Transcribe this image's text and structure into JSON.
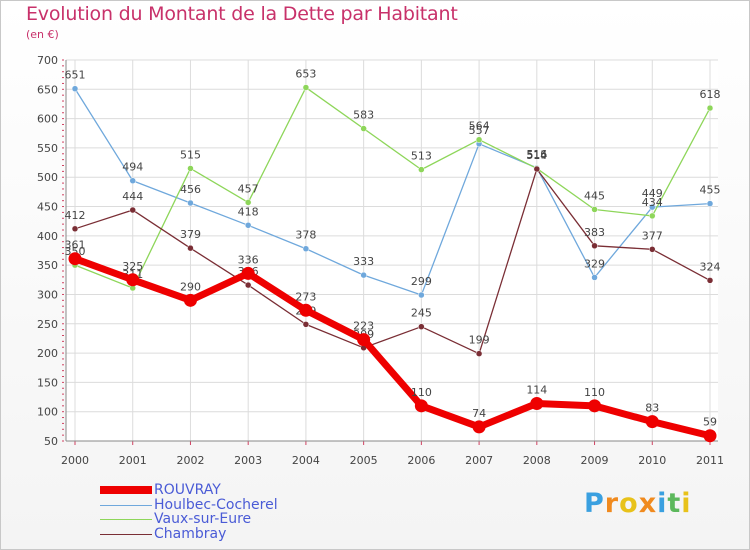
{
  "title": "Evolution du Montant de la Dette par Habitant",
  "subtitle": "(en €)",
  "logo": {
    "text": "Proxiti",
    "letters": [
      "P",
      "r",
      "o",
      "x",
      "i",
      "t",
      "i"
    ],
    "colors": [
      "#3aa0e0",
      "#f08a1e",
      "#e8c21a",
      "#f08a1e",
      "#3aa0e0",
      "#5cb85c",
      "#e8c21a"
    ]
  },
  "chart_data": {
    "type": "line",
    "x": [
      "2000",
      "2001",
      "2002",
      "2003",
      "2004",
      "2005",
      "2006",
      "2007",
      "2008",
      "2009",
      "2010",
      "2011"
    ],
    "ylim": [
      50,
      700
    ],
    "yticks": [
      50,
      100,
      150,
      200,
      250,
      300,
      350,
      400,
      450,
      500,
      550,
      600,
      650,
      700
    ],
    "grid": true,
    "legend_position": "bottom-left",
    "series": [
      {
        "name": "Houlbec-Cocherel",
        "color": "#6fa8dc",
        "values": [
          651,
          494,
          456,
          418,
          378,
          333,
          299,
          557,
          516,
          329,
          449,
          455
        ]
      },
      {
        "name": "Vaux-sur-Eure",
        "color": "#8ed65a",
        "values": [
          350,
          311,
          515,
          457,
          653,
          583,
          513,
          564,
          515,
          445,
          434,
          618
        ]
      },
      {
        "name": "Chambray",
        "color": "#7a2e35",
        "values": [
          412,
          444,
          379,
          316,
          249,
          209,
          245,
          199,
          514,
          383,
          377,
          324
        ]
      },
      {
        "name": "ROUVRAY",
        "color": "#ee0000",
        "values": [
          361,
          325,
          290,
          336,
          273,
          223,
          110,
          74,
          114,
          110,
          83,
          59
        ]
      }
    ],
    "legend_order": [
      "ROUVRAY",
      "Houlbec-Cocherel",
      "Vaux-sur-Eure",
      "Chambray"
    ]
  }
}
